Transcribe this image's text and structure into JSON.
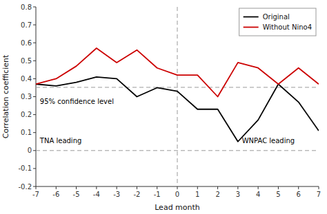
{
  "chart_data": {
    "type": "line",
    "x": [
      -7,
      -6,
      -5,
      -4,
      -3,
      -2,
      -1,
      0,
      1,
      2,
      3,
      4,
      5,
      6,
      7
    ],
    "series": [
      {
        "name": "Original",
        "color": "#000000",
        "values": [
          0.37,
          0.36,
          0.38,
          0.41,
          0.4,
          0.3,
          0.35,
          0.33,
          0.23,
          0.23,
          0.05,
          0.17,
          0.37,
          0.27,
          0.11
        ]
      },
      {
        "name": "Without Nino4",
        "color": "#cc0000",
        "values": [
          0.37,
          0.4,
          0.47,
          0.57,
          0.49,
          0.56,
          0.46,
          0.42,
          0.42,
          0.3,
          0.49,
          0.46,
          0.37,
          0.46,
          0.37
        ]
      }
    ],
    "xlabel": "Lead month",
    "ylabel": "Correlation coefficient",
    "xlim": [
      -7,
      7
    ],
    "ylim": [
      -0.2,
      0.8
    ],
    "xticks": [
      -7,
      -6,
      -5,
      -4,
      -3,
      -2,
      -1,
      0,
      1,
      2,
      3,
      4,
      5,
      6,
      7
    ],
    "yticks": [
      -0.2,
      -0.1,
      0,
      0.1,
      0.2,
      0.3,
      0.4,
      0.5,
      0.6,
      0.7,
      0.8
    ],
    "reference_lines": {
      "y": [
        0.352,
        0
      ],
      "x": [
        0
      ],
      "color": "#999999",
      "line_style": "dashed"
    },
    "annotations": [
      {
        "text": "95% confidence level",
        "x": -6.8,
        "y": 0.26
      },
      {
        "text": "TNA leading",
        "x": -6.8,
        "y": 0.04
      },
      {
        "text": "WNPAC leading",
        "x": 3.2,
        "y": 0.04
      }
    ],
    "legend": "upper right",
    "grid": false
  }
}
